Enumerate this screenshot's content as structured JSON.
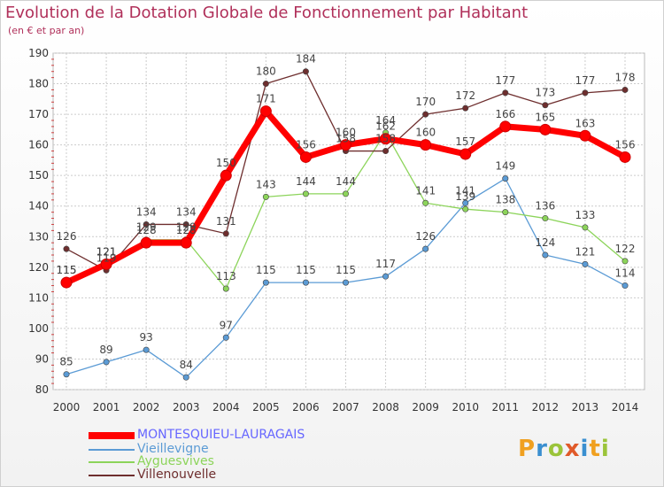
{
  "title": "Evolution de la Dotation Globale de Fonctionnement par Habitant",
  "subtitle": "(en € et par an)",
  "logo_text": "Proxiti",
  "colors": {
    "montesquieu": "#ff0000",
    "vieillevigne": "#5b9bd5",
    "ayguesvives": "#8cd45a",
    "villenouvelle": "#6e2e2e",
    "title": "#b0305a",
    "grid": "#cccccc",
    "axis_text": "#333333",
    "legend_main": "#6666ff"
  },
  "chart_data": {
    "type": "line",
    "title": "Evolution de la Dotation Globale de Fonctionnement par Habitant",
    "xlabel": "",
    "ylabel": "(en € et par an)",
    "ylim": [
      80,
      190
    ],
    "yticks": [
      80,
      90,
      100,
      110,
      120,
      130,
      140,
      150,
      160,
      170,
      180,
      190
    ],
    "grid": true,
    "legend_position": "bottom-left",
    "categories": [
      "2000",
      "2001",
      "2002",
      "2003",
      "2004",
      "2005",
      "2006",
      "2007",
      "2008",
      "2009",
      "2010",
      "2011",
      "2012",
      "2013",
      "2014"
    ],
    "series": [
      {
        "name": "MONTESQUIEU-LAURAGAIS",
        "color": "#ff0000",
        "highlight": true,
        "values": [
          115,
          121,
          128,
          128,
          150,
          171,
          156,
          160,
          162,
          160,
          157,
          166,
          165,
          163,
          156
        ]
      },
      {
        "name": "Vieillevigne",
        "color": "#5b9bd5",
        "highlight": false,
        "values": [
          85,
          89,
          93,
          84,
          97,
          115,
          115,
          115,
          117,
          126,
          141,
          149,
          124,
          121,
          114
        ]
      },
      {
        "name": "Ayguesvives",
        "color": "#8cd45a",
        "highlight": false,
        "values": [
          115,
          121,
          129,
          129,
          113,
          143,
          144,
          144,
          164,
          141,
          139,
          138,
          136,
          133,
          122
        ]
      },
      {
        "name": "Villenouvelle",
        "color": "#6e2e2e",
        "highlight": false,
        "values": [
          126,
          119,
          134,
          134,
          131,
          180,
          184,
          158,
          158,
          170,
          172,
          177,
          173,
          177,
          178
        ]
      }
    ]
  }
}
